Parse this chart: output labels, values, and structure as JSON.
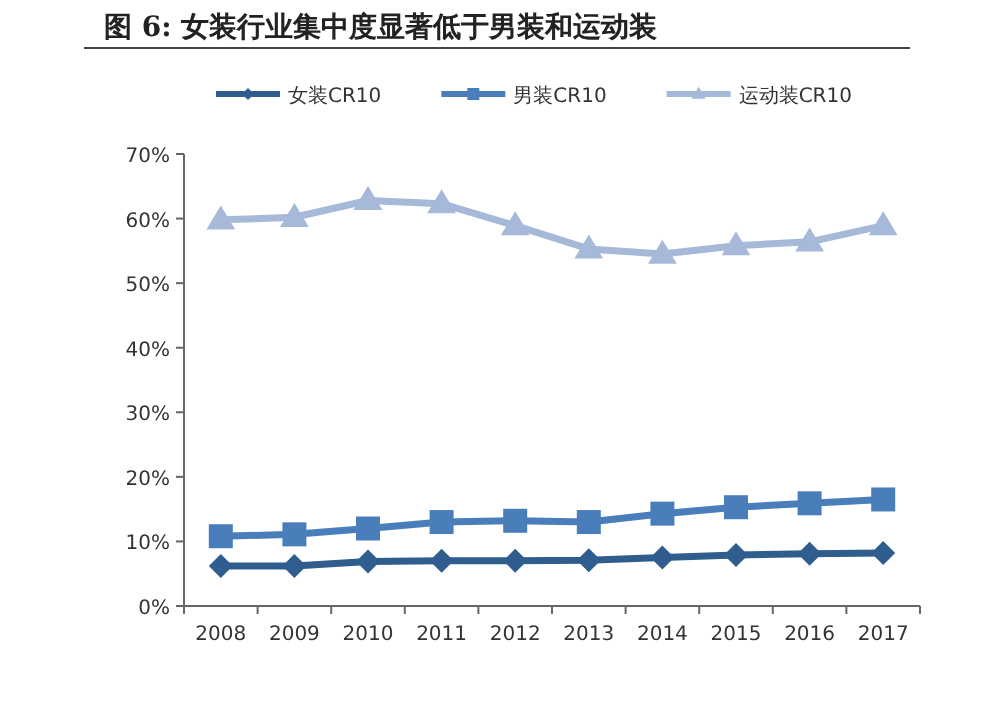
{
  "chart_data": {
    "type": "line",
    "title": "图 6: 女装行业集中度显著低于男装和运动装",
    "categories": [
      "2008",
      "2009",
      "2010",
      "2011",
      "2012",
      "2013",
      "2014",
      "2015",
      "2016",
      "2017"
    ],
    "series": [
      {
        "name": "女装CR10",
        "color": "#2e5d8e",
        "marker": "diamond",
        "values": [
          6.2,
          6.2,
          6.9,
          7.0,
          7.0,
          7.1,
          7.5,
          7.9,
          8.1,
          8.2
        ]
      },
      {
        "name": "男装CR10",
        "color": "#4a7ebb",
        "marker": "square",
        "values": [
          10.8,
          11.1,
          12.0,
          13.0,
          13.2,
          13.0,
          14.3,
          15.3,
          15.9,
          16.5
        ]
      },
      {
        "name": "运动装CR10",
        "color": "#a6b9d9",
        "marker": "triangle",
        "values": [
          59.8,
          60.2,
          62.8,
          62.3,
          58.9,
          55.3,
          54.5,
          55.8,
          56.4,
          58.9
        ]
      }
    ],
    "ylim": [
      0,
      70
    ],
    "yticks": [
      {
        "value": 0,
        "label": "0%"
      },
      {
        "value": 10,
        "label": "10%"
      },
      {
        "value": 20,
        "label": "20%"
      },
      {
        "value": 30,
        "label": "30%"
      },
      {
        "value": 40,
        "label": "40%"
      },
      {
        "value": 50,
        "label": "50%"
      },
      {
        "value": 60,
        "label": "60%"
      },
      {
        "value": 70,
        "label": "70%"
      }
    ],
    "grid": false,
    "legend": "top"
  }
}
